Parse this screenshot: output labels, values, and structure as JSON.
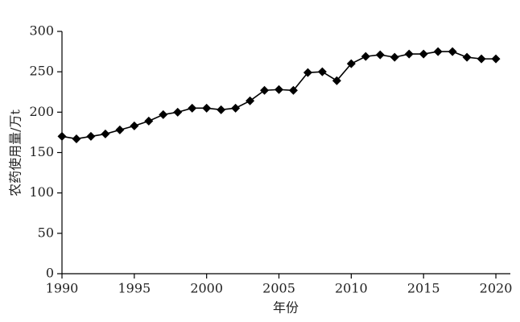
{
  "chart_data": {
    "type": "line",
    "xlabel": "年份",
    "ylabel": "农药使用量/万t",
    "x": [
      1990,
      1991,
      1992,
      1993,
      1994,
      1995,
      1996,
      1997,
      1998,
      1999,
      2000,
      2001,
      2002,
      2003,
      2004,
      2005,
      2006,
      2007,
      2008,
      2009,
      2010,
      2011,
      2012,
      2013,
      2014,
      2015,
      2016,
      2017,
      2018,
      2019,
      2020
    ],
    "series": [
      {
        "color": "#000000",
        "values": [
          170,
          167,
          170,
          173,
          178,
          183,
          189,
          197,
          200,
          205,
          205,
          203,
          205,
          214,
          227,
          228,
          227,
          249,
          250,
          239,
          260,
          269,
          271,
          268,
          272,
          272,
          275,
          275,
          268,
          266,
          266
        ]
      }
    ],
    "xlim": [
      1990,
      2021
    ],
    "xticks": [
      1990,
      1995,
      2000,
      2005,
      2010,
      2015,
      2020
    ],
    "ylim": [
      0,
      300
    ],
    "yticks": [
      0,
      50,
      100,
      150,
      200,
      250,
      300
    ]
  }
}
